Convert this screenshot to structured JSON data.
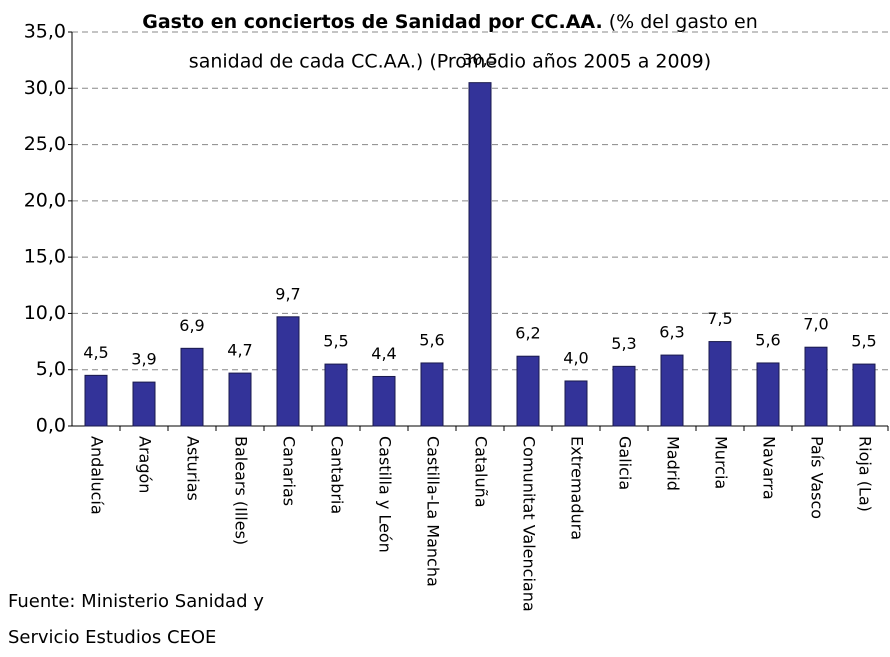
{
  "chart_data": {
    "type": "bar",
    "title": "Gasto en conciertos de Sanidad por CC.AA.",
    "subtitle": [
      "(% del gasto en",
      "sanidad de cada CC.AA.) (Promedio años 2005 a 2009)"
    ],
    "categories": [
      "Andalucía",
      "Aragón",
      "Asturias",
      "Balears (Illes)",
      "Canarias",
      "Cantabria",
      "Castilla y León",
      "Castilla-La Mancha",
      "Cataluña",
      "Comunitat Valenciana",
      "Extremadura",
      "Galicia",
      "Madrid",
      "Murcia",
      "Navarra",
      "País Vasco",
      "Rioja (La)"
    ],
    "values": [
      4.5,
      3.9,
      6.9,
      4.7,
      9.7,
      5.5,
      4.4,
      5.6,
      30.5,
      6.2,
      4.0,
      5.3,
      6.3,
      7.5,
      5.6,
      7.0,
      5.5
    ],
    "value_labels": [
      "4,5",
      "3,9",
      "6,9",
      "4,7",
      "9,7",
      "5,5",
      "4,4",
      "5,6",
      "30,5",
      "6,2",
      "4,0",
      "5,3",
      "6,3",
      "7,5",
      "5,6",
      "7,0",
      "5,5"
    ],
    "color": "#333399",
    "ylim": [
      0,
      35
    ],
    "yticks": [
      {
        "value": 0,
        "label": "0,0"
      },
      {
        "value": 5,
        "label": "5,0"
      },
      {
        "value": 10,
        "label": "10,0"
      },
      {
        "value": 15,
        "label": "15,0"
      },
      {
        "value": 20,
        "label": "20,0"
      },
      {
        "value": 25,
        "label": "25,0"
      },
      {
        "value": 30,
        "label": "30,0"
      },
      {
        "value": 35,
        "label": "35,0"
      }
    ],
    "grid": true,
    "source": [
      "Fuente: Ministerio Sanidad y",
      "Servicio Estudios CEOE"
    ]
  }
}
